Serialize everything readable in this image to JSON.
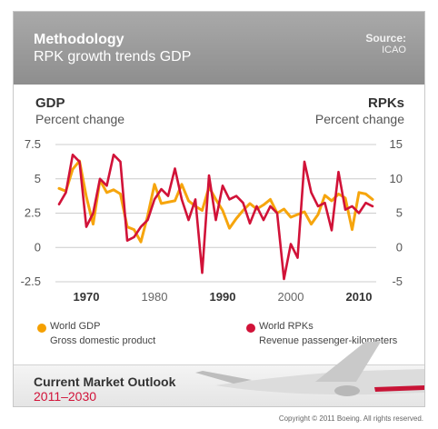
{
  "header": {
    "title": "Methodology",
    "subtitle": "RPK growth trends GDP",
    "source_label": "Source:",
    "source_value": "ICAO"
  },
  "axes": {
    "left_title": "GDP",
    "left_sub": "Percent change",
    "right_title": "RPKs",
    "right_sub": "Percent change"
  },
  "legend": {
    "gdp_name": "World GDP",
    "gdp_desc": "Gross domestic product",
    "rpk_name": "World RPKs",
    "rpk_desc": "Revenue passenger-kilometers"
  },
  "footer": {
    "title": "Current Market Outlook",
    "years": "2011–2030",
    "copyright": "Copyright © 2011 Boeing. All rights reserved."
  },
  "colors": {
    "gdp": "#f5a000",
    "rpk": "#d11238",
    "grid": "#cccccc",
    "text": "#333333"
  },
  "chart_data": {
    "type": "line",
    "x": [
      1966,
      1967,
      1968,
      1969,
      1970,
      1971,
      1972,
      1973,
      1974,
      1975,
      1976,
      1977,
      1978,
      1979,
      1980,
      1981,
      1982,
      1983,
      1984,
      1985,
      1986,
      1987,
      1988,
      1989,
      1990,
      1991,
      1992,
      1993,
      1994,
      1995,
      1996,
      1997,
      1998,
      1999,
      2000,
      2001,
      2002,
      2003,
      2004,
      2005,
      2006,
      2007,
      2008,
      2009,
      2010,
      2011,
      2012
    ],
    "x_ticks": [
      1970,
      1980,
      1990,
      2000,
      2010
    ],
    "x_tick_labels": [
      "1970",
      "1980",
      "1990",
      "2000",
      "2010"
    ],
    "xlim": [
      1966,
      2012
    ],
    "y_left_ticks": [
      7.5,
      5,
      2.5,
      0,
      -2.5
    ],
    "y_left_tick_labels": [
      "7.5",
      "5",
      "2.5",
      "0",
      "-2.5"
    ],
    "y_left_lim": [
      -2.5,
      7.5
    ],
    "y_right_ticks": [
      15,
      10,
      5,
      0,
      -5
    ],
    "y_right_tick_labels": [
      "15",
      "10",
      "5",
      "0",
      "-5"
    ],
    "y_right_lim": [
      -5,
      15
    ],
    "grid": "horizontal",
    "legend_position": "bottom",
    "series": [
      {
        "name": "World GDP",
        "axis": "left",
        "values": [
          4.3,
          4.1,
          5.7,
          6.3,
          3.7,
          1.7,
          4.9,
          4.0,
          4.2,
          3.9,
          1.5,
          1.3,
          0.4,
          2.3,
          4.6,
          3.2,
          3.3,
          3.4,
          4.6,
          3.4,
          3.0,
          2.7,
          4.4,
          3.5,
          2.7,
          1.4,
          2.1,
          2.7,
          3.2,
          2.8,
          3.1,
          3.5,
          2.5,
          2.8,
          2.2,
          2.4,
          2.6,
          1.7,
          2.4,
          3.8,
          3.4,
          3.9,
          3.6,
          1.3,
          4.0,
          3.9,
          3.5
        ]
      },
      {
        "name": "World RPKs",
        "axis": "right",
        "values": [
          6.3,
          8.0,
          13.5,
          12.5,
          3.0,
          5.0,
          10.0,
          9.0,
          13.5,
          12.5,
          1.0,
          1.5,
          3.0,
          4.0,
          7.0,
          8.5,
          7.5,
          11.5,
          7.0,
          4.0,
          7.0,
          -3.7,
          10.5,
          4.0,
          9.0,
          7.0,
          7.5,
          6.5,
          3.5,
          6.0,
          4.0,
          6.0,
          5.0,
          -4.6,
          0.5,
          -1.5,
          12.5,
          8.0,
          6.0,
          6.5,
          2.5,
          11.0,
          5.5,
          6.0,
          5.0,
          6.5,
          6.0
        ]
      }
    ]
  }
}
